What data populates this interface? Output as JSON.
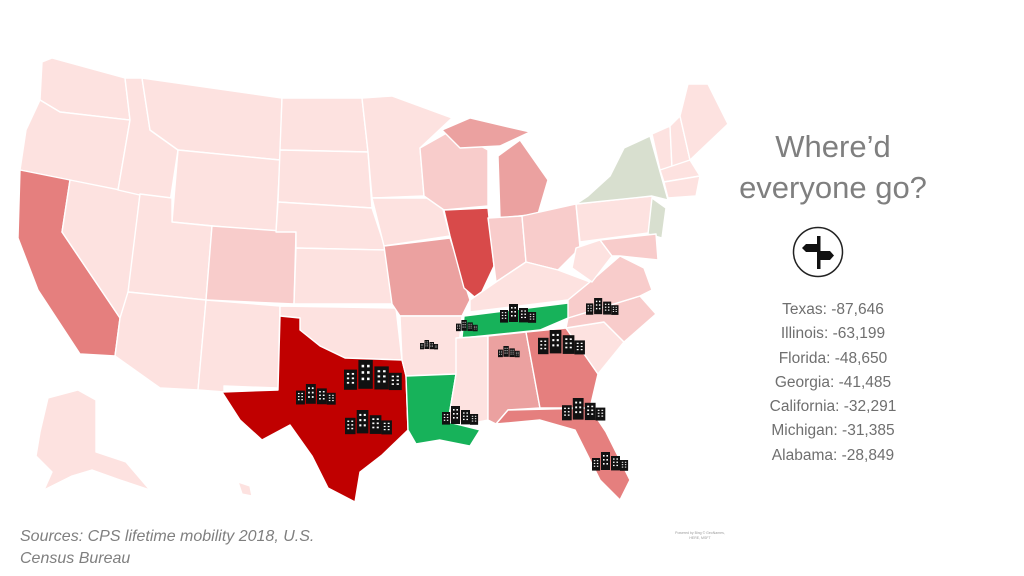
{
  "title": "Where’d everyone go?",
  "stats": [
    {
      "state": "Texas",
      "value": "-87,646"
    },
    {
      "state": "Illinois",
      "value": "-63,199"
    },
    {
      "state": "Florida",
      "value": "-48,650"
    },
    {
      "state": "Georgia",
      "value": "-41,485"
    },
    {
      "state": "California",
      "value": "-32,291"
    },
    {
      "state": "Michigan",
      "value": "-31,385"
    },
    {
      "state": "Alabama",
      "value": "-28,849"
    }
  ],
  "source": "Sources: CPS lifetime mobility 2018, U.S. Census Bureau",
  "credit": "Powered by Bing © GeoNames, HERE, MSFT",
  "colors": {
    "pale": "#fde2e0",
    "light": "#f8cccb",
    "mid": "#eba1a0",
    "strong": "#e57f7e",
    "illinois": "#d84a4a",
    "texas": "#c00000",
    "gain": "#17b25a",
    "neutral": "#d8dfcf",
    "text": "#7f7f7f"
  }
}
